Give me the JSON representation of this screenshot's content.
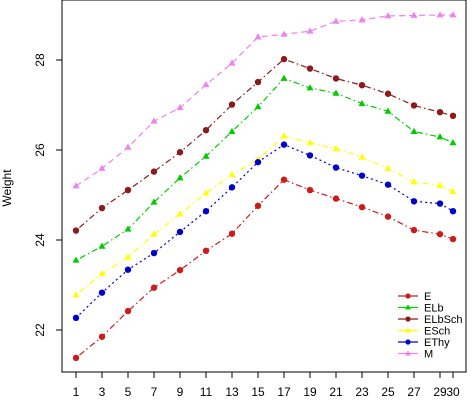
{
  "chart_data": {
    "type": "line",
    "ylabel": "Weight",
    "xlabel": "",
    "x": [
      1,
      3,
      5,
      7,
      9,
      11,
      13,
      15,
      17,
      19,
      21,
      23,
      25,
      27,
      29,
      30
    ],
    "x_ticks": [
      1,
      3,
      5,
      7,
      9,
      11,
      13,
      15,
      17,
      19,
      21,
      23,
      25,
      27,
      29,
      30
    ],
    "y_ticks": [
      22,
      24,
      26,
      28
    ],
    "xlim": [
      1,
      30
    ],
    "ylim": [
      21.1,
      29.35
    ],
    "grid": false,
    "legend_position": "bottom-right",
    "series": [
      {
        "name": "E",
        "color": "#cc1b1b",
        "marker": "circle",
        "dash": "dot-dash",
        "values": [
          21.38,
          21.85,
          22.42,
          22.94,
          23.33,
          23.76,
          24.14,
          24.76,
          25.34,
          25.11,
          24.92,
          24.73,
          24.52,
          24.22,
          24.13,
          24.02
        ]
      },
      {
        "name": "ELb",
        "color": "#00cc00",
        "marker": "triangle",
        "dash": "dot-dash",
        "values": [
          23.55,
          23.86,
          24.24,
          24.84,
          25.38,
          25.86,
          26.41,
          26.96,
          27.59,
          27.38,
          27.26,
          27.03,
          26.86,
          26.41,
          26.29,
          26.16
        ]
      },
      {
        "name": "ELbSch",
        "color": "#8b1a1a",
        "marker": "circle",
        "dash": "dot-dash",
        "values": [
          24.21,
          24.71,
          25.11,
          25.52,
          25.95,
          26.44,
          27.01,
          27.51,
          28.02,
          27.81,
          27.59,
          27.44,
          27.25,
          26.99,
          26.84,
          26.76
        ]
      },
      {
        "name": "ESch",
        "color": "#ffff00",
        "marker": "triangle",
        "dash": "dot-dash",
        "values": [
          22.78,
          23.25,
          23.62,
          24.13,
          24.58,
          25.04,
          25.45,
          25.79,
          26.31,
          26.16,
          26.03,
          25.84,
          25.59,
          25.29,
          25.21,
          25.07
        ]
      },
      {
        "name": "EThy",
        "color": "#0000cc",
        "marker": "circle",
        "dash": "dot",
        "values": [
          22.27,
          22.83,
          23.34,
          23.71,
          24.18,
          24.64,
          25.17,
          25.73,
          26.12,
          25.88,
          25.61,
          25.43,
          25.23,
          24.86,
          24.81,
          24.64
        ]
      },
      {
        "name": "M",
        "color": "#ee82ee",
        "marker": "triangle",
        "dash": "dash",
        "values": [
          25.2,
          25.59,
          26.06,
          26.64,
          26.94,
          27.45,
          27.93,
          28.51,
          28.57,
          28.64,
          28.86,
          28.89,
          28.98,
          28.99,
          29.0,
          29.0
        ]
      }
    ]
  }
}
